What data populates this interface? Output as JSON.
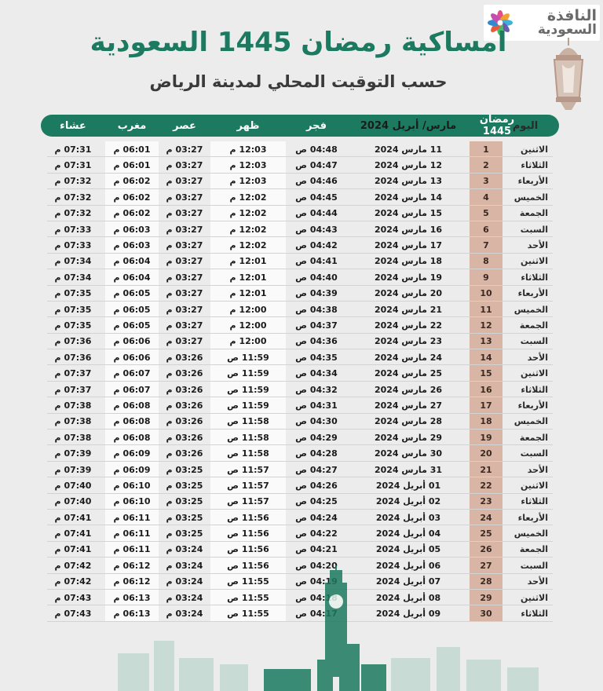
{
  "title": "امساكية رمضان 1445 السعودية",
  "subtitle": "حسب التوقيت المحلي لمدينة الرياض",
  "logo": {
    "line1": "النافذة",
    "line2": "السعودية"
  },
  "colors": {
    "accent": "#1b7a60",
    "ramadan_column": "#d9b5a5",
    "background": "#ececec"
  },
  "table": {
    "headers": {
      "day": "اليوم",
      "ramadan": "رمضان 1445",
      "date": "مارس/ أبريل 2024",
      "fajr": "فجر",
      "dhuhr": "ظهر",
      "asr": "عصر",
      "maghrib": "مغرب",
      "isha": "عشاء"
    },
    "rows": [
      {
        "day": "الاثنين",
        "num": "1",
        "date": "11 مارس 2024",
        "fajr": "04:48 ص",
        "dhuhr": "12:03 م",
        "asr": "03:27 م",
        "maghrib": "06:01 م",
        "isha": "07:31 م"
      },
      {
        "day": "الثلاثاء",
        "num": "2",
        "date": "12 مارس 2024",
        "fajr": "04:47 ص",
        "dhuhr": "12:03 م",
        "asr": "03:27 م",
        "maghrib": "06:01 م",
        "isha": "07:31 م"
      },
      {
        "day": "الأربعاء",
        "num": "3",
        "date": "13 مارس 2024",
        "fajr": "04:46 ص",
        "dhuhr": "12:03 م",
        "asr": "03:27 م",
        "maghrib": "06:02 م",
        "isha": "07:32 م"
      },
      {
        "day": "الخميس",
        "num": "4",
        "date": "14 مارس 2024",
        "fajr": "04:45 ص",
        "dhuhr": "12:02 م",
        "asr": "03:27 م",
        "maghrib": "06:02 م",
        "isha": "07:32 م"
      },
      {
        "day": "الجمعة",
        "num": "5",
        "date": "15 مارس 2024",
        "fajr": "04:44 ص",
        "dhuhr": "12:02 م",
        "asr": "03:27 م",
        "maghrib": "06:02 م",
        "isha": "07:32 م"
      },
      {
        "day": "السبت",
        "num": "6",
        "date": "16 مارس 2024",
        "fajr": "04:43 ص",
        "dhuhr": "12:02 م",
        "asr": "03:27 م",
        "maghrib": "06:03 م",
        "isha": "07:33 م"
      },
      {
        "day": "الأحد",
        "num": "7",
        "date": "17 مارس 2024",
        "fajr": "04:42 ص",
        "dhuhr": "12:02 م",
        "asr": "03:27 م",
        "maghrib": "06:03 م",
        "isha": "07:33 م"
      },
      {
        "day": "الاثنين",
        "num": "8",
        "date": "18 مارس 2024",
        "fajr": "04:41 ص",
        "dhuhr": "12:01 م",
        "asr": "03:27 م",
        "maghrib": "06:04 م",
        "isha": "07:34 م"
      },
      {
        "day": "الثلاثاء",
        "num": "9",
        "date": "19 مارس 2024",
        "fajr": "04:40 ص",
        "dhuhr": "12:01 م",
        "asr": "03:27 م",
        "maghrib": "06:04 م",
        "isha": "07:34 م"
      },
      {
        "day": "الأربعاء",
        "num": "10",
        "date": "20 مارس 2024",
        "fajr": "04:39 ص",
        "dhuhr": "12:01 م",
        "asr": "03:27 م",
        "maghrib": "06:05 م",
        "isha": "07:35 م"
      },
      {
        "day": "الخميس",
        "num": "11",
        "date": "21 مارس 2024",
        "fajr": "04:38 ص",
        "dhuhr": "12:00 م",
        "asr": "03:27 م",
        "maghrib": "06:05 م",
        "isha": "07:35 م"
      },
      {
        "day": "الجمعة",
        "num": "12",
        "date": "22 مارس 2024",
        "fajr": "04:37 ص",
        "dhuhr": "12:00 م",
        "asr": "03:27 م",
        "maghrib": "06:05 م",
        "isha": "07:35 م"
      },
      {
        "day": "السبت",
        "num": "13",
        "date": "23 مارس 2024",
        "fajr": "04:36 ص",
        "dhuhr": "12:00 م",
        "asr": "03:27 م",
        "maghrib": "06:06 م",
        "isha": "07:36 م"
      },
      {
        "day": "الأحد",
        "num": "14",
        "date": "24 مارس 2024",
        "fajr": "04:35 ص",
        "dhuhr": "11:59 ص",
        "asr": "03:26 م",
        "maghrib": "06:06 م",
        "isha": "07:36 م"
      },
      {
        "day": "الاثنين",
        "num": "15",
        "date": "25 مارس 2024",
        "fajr": "04:34 ص",
        "dhuhr": "11:59 ص",
        "asr": "03:26 م",
        "maghrib": "06:07 م",
        "isha": "07:37 م"
      },
      {
        "day": "الثلاثاء",
        "num": "16",
        "date": "26 مارس 2024",
        "fajr": "04:32 ص",
        "dhuhr": "11:59 ص",
        "asr": "03:26 م",
        "maghrib": "06:07 م",
        "isha": "07:37 م"
      },
      {
        "day": "الأربعاء",
        "num": "17",
        "date": "27 مارس 2024",
        "fajr": "04:31 ص",
        "dhuhr": "11:59 ص",
        "asr": "03:26 م",
        "maghrib": "06:08 م",
        "isha": "07:38 م"
      },
      {
        "day": "الخميس",
        "num": "18",
        "date": "28 مارس 2024",
        "fajr": "04:30 ص",
        "dhuhr": "11:58 ص",
        "asr": "03:26 م",
        "maghrib": "06:08 م",
        "isha": "07:38 م"
      },
      {
        "day": "الجمعة",
        "num": "19",
        "date": "29 مارس 2024",
        "fajr": "04:29 ص",
        "dhuhr": "11:58 ص",
        "asr": "03:26 م",
        "maghrib": "06:08 م",
        "isha": "07:38 م"
      },
      {
        "day": "السبت",
        "num": "20",
        "date": "30 مارس 2024",
        "fajr": "04:28 ص",
        "dhuhr": "11:58 ص",
        "asr": "03:26 م",
        "maghrib": "06:09 م",
        "isha": "07:39 م"
      },
      {
        "day": "الأحد",
        "num": "21",
        "date": "31 مارس 2024",
        "fajr": "04:27 ص",
        "dhuhr": "11:57 ص",
        "asr": "03:25 م",
        "maghrib": "06:09 م",
        "isha": "07:39 م"
      },
      {
        "day": "الاثنين",
        "num": "22",
        "date": "01 أبريل 2024",
        "fajr": "04:26 ص",
        "dhuhr": "11:57 ص",
        "asr": "03:25 م",
        "maghrib": "06:10 م",
        "isha": "07:40 م"
      },
      {
        "day": "الثلاثاء",
        "num": "23",
        "date": "02 أبريل 2024",
        "fajr": "04:25 ص",
        "dhuhr": "11:57 ص",
        "asr": "03:25 م",
        "maghrib": "06:10 م",
        "isha": "07:40 م"
      },
      {
        "day": "الأربعاء",
        "num": "24",
        "date": "03 أبريل 2024",
        "fajr": "04:24 ص",
        "dhuhr": "11:56 ص",
        "asr": "03:25 م",
        "maghrib": "06:11 م",
        "isha": "07:41 م"
      },
      {
        "day": "الخميس",
        "num": "25",
        "date": "04 أبريل 2024",
        "fajr": "04:22 ص",
        "dhuhr": "11:56 ص",
        "asr": "03:25 م",
        "maghrib": "06:11 م",
        "isha": "07:41 م"
      },
      {
        "day": "الجمعة",
        "num": "26",
        "date": "05 أبريل 2024",
        "fajr": "04:21 ص",
        "dhuhr": "11:56 ص",
        "asr": "03:24 م",
        "maghrib": "06:11 م",
        "isha": "07:41 م"
      },
      {
        "day": "السبت",
        "num": "27",
        "date": "06 أبريل 2024",
        "fajr": "04:20 ص",
        "dhuhr": "11:56 ص",
        "asr": "03:24 م",
        "maghrib": "06:12 م",
        "isha": "07:42 م"
      },
      {
        "day": "الأحد",
        "num": "28",
        "date": "07 أبريل 2024",
        "fajr": "04:19 ص",
        "dhuhr": "11:55 ص",
        "asr": "03:24 م",
        "maghrib": "06:12 م",
        "isha": "07:42 م"
      },
      {
        "day": "الاثنين",
        "num": "29",
        "date": "08 أبريل 2024",
        "fajr": "04:18 ص",
        "dhuhr": "11:55 ص",
        "asr": "03:24 م",
        "maghrib": "06:13 م",
        "isha": "07:43 م"
      },
      {
        "day": "الثلاثاء",
        "num": "30",
        "date": "09 أبريل 2024",
        "fajr": "04:17 ص",
        "dhuhr": "11:55 ص",
        "asr": "03:24 م",
        "maghrib": "06:13 م",
        "isha": "07:43 م"
      }
    ]
  }
}
